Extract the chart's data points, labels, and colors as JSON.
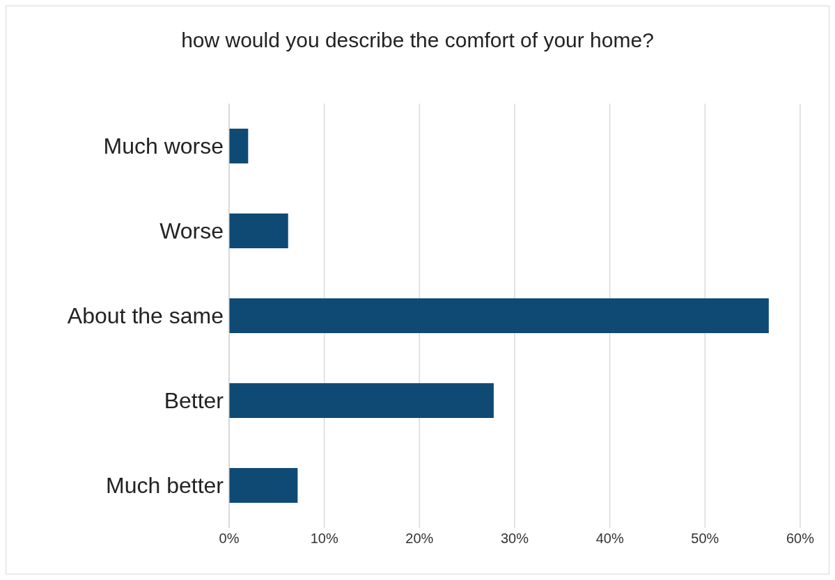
{
  "chart_data": {
    "type": "bar",
    "orientation": "horizontal",
    "title": "how would you describe the comfort of your home?",
    "categories": [
      "Much worse",
      "Worse",
      "About the same",
      "Better",
      "Much better"
    ],
    "values": [
      2,
      6.2,
      56.7,
      27.8,
      7.2
    ],
    "color": "#0f4a75",
    "xlim": [
      0,
      60
    ],
    "xticks": [
      {
        "value": 0,
        "label": "0%"
      },
      {
        "value": 10,
        "label": "10%"
      },
      {
        "value": 20,
        "label": "20%"
      },
      {
        "value": 30,
        "label": "30%"
      },
      {
        "value": 40,
        "label": "40%"
      },
      {
        "value": 50,
        "label": "50%"
      },
      {
        "value": 60,
        "label": "60%"
      }
    ],
    "grid": "x",
    "legend": false
  }
}
